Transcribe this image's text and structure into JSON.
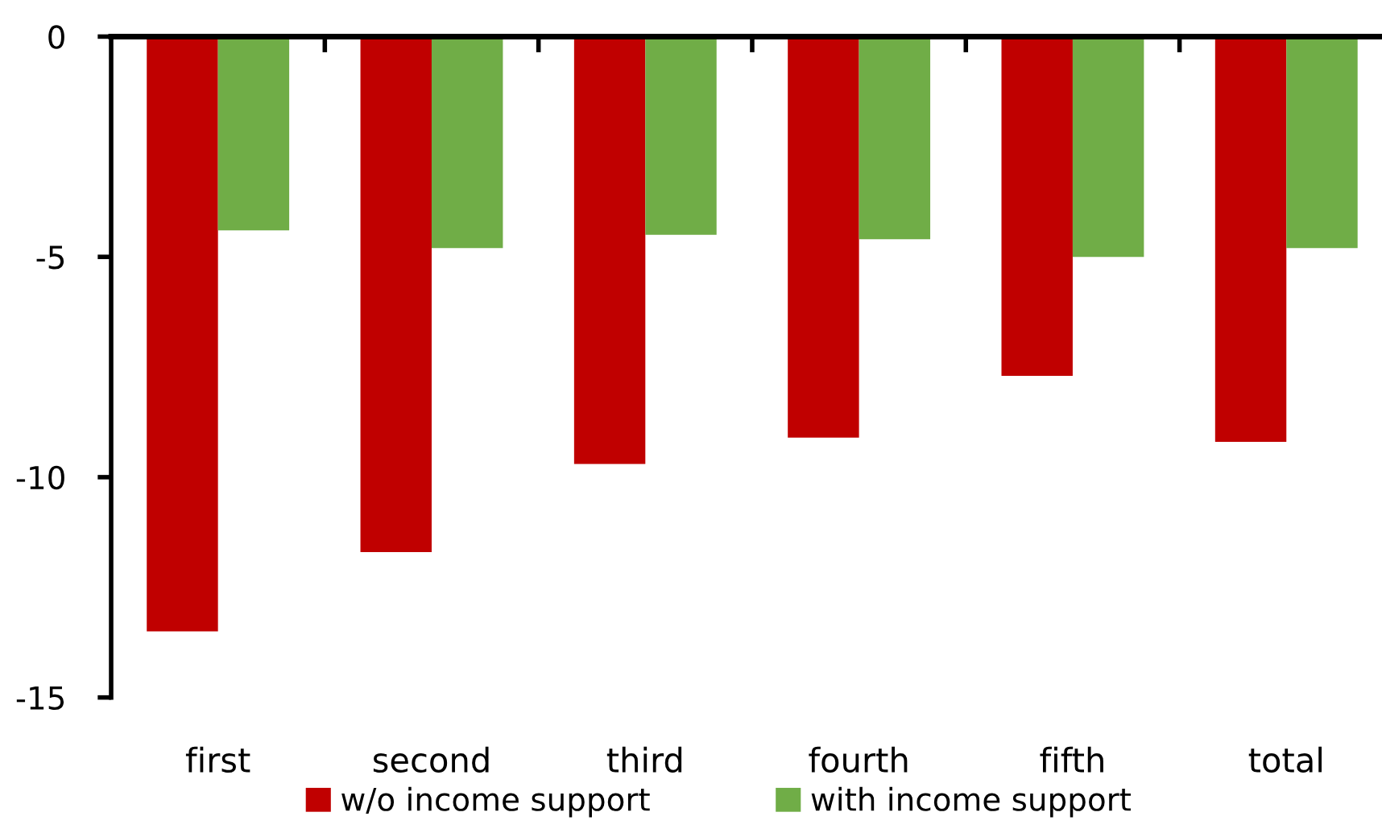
{
  "chart_data": {
    "type": "bar",
    "categories": [
      "first",
      "second",
      "third",
      "fourth",
      "fifth",
      "total"
    ],
    "series": [
      {
        "name": "w/o income support",
        "color": "#c00000",
        "values": [
          -13.5,
          -11.7,
          -9.7,
          -9.1,
          -7.7,
          -9.2
        ]
      },
      {
        "name": "with income support",
        "color": "#70ad47",
        "values": [
          -4.4,
          -4.8,
          -4.5,
          -4.6,
          -5.0,
          -4.8
        ]
      }
    ],
    "ylim": [
      -15,
      0
    ],
    "yticks": [
      -15,
      -10,
      -5,
      0
    ],
    "legend": "bottom"
  }
}
